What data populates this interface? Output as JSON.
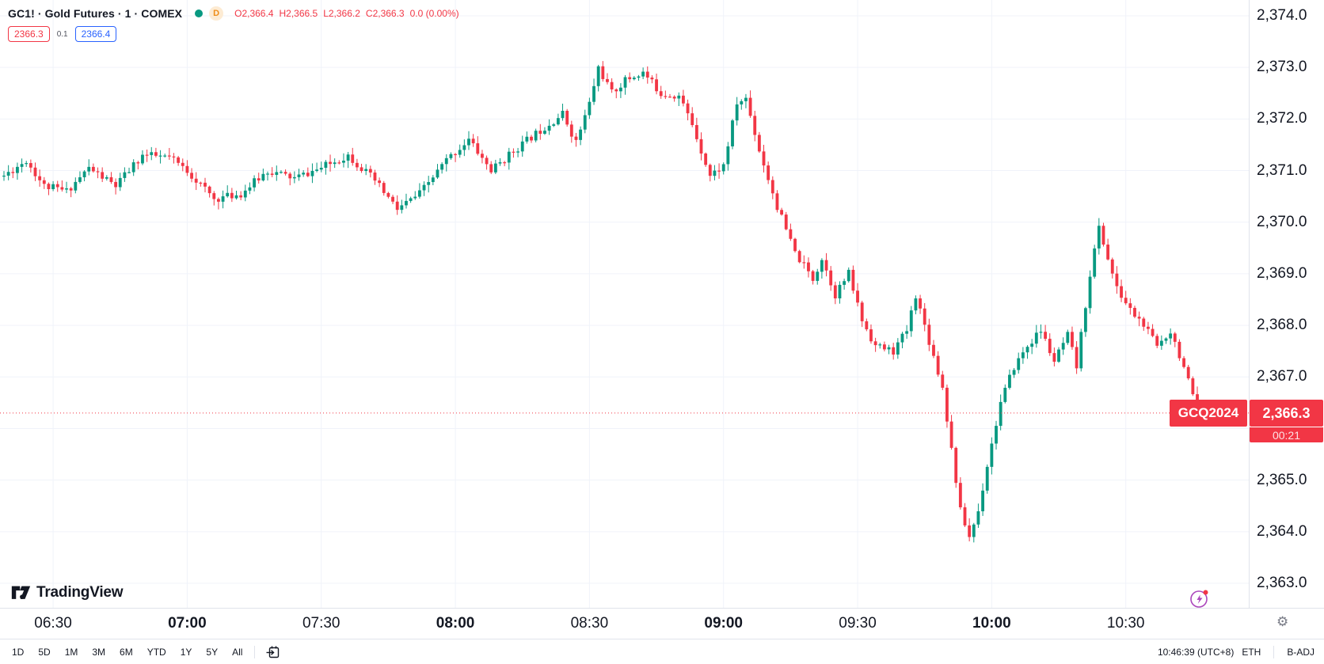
{
  "header": {
    "symbol_title": "GC1! · Gold Futures · 1 · COMEX",
    "market_status": "open",
    "interval_badge": "D",
    "ohlc": {
      "open_label": "O",
      "open": "2,366.4",
      "high_label": "H",
      "high": "2,366.5",
      "low_label": "L",
      "low": "2,366.2",
      "close_label": "C",
      "close": "2,366.3",
      "change": "0.0 (0.00%)"
    },
    "bid": "2366.3",
    "spread": "0.1",
    "ask": "2366.4"
  },
  "branding": {
    "logo_text": "TradingView"
  },
  "chart_data": {
    "type": "candlestick",
    "symbol": "GC1!",
    "contract": "GCQ2024",
    "interval_minutes": 1,
    "session_start": "06:19",
    "session_end": "10:46",
    "last_price": 2366.3,
    "price_axis": {
      "min": 2363.0,
      "max": 2374.0,
      "tick": 1.0,
      "labels": [
        {
          "value": 2374.0,
          "label": "2,374.0"
        },
        {
          "value": 2373.0,
          "label": "2,373.0"
        },
        {
          "value": 2372.0,
          "label": "2,372.0"
        },
        {
          "value": 2371.0,
          "label": "2,371.0"
        },
        {
          "value": 2370.0,
          "label": "2,370.0"
        },
        {
          "value": 2369.0,
          "label": "2,369.0"
        },
        {
          "value": 2368.0,
          "label": "2,368.0"
        },
        {
          "value": 2367.0,
          "label": "2,367.0"
        },
        {
          "value": 2365.0,
          "label": "2,365.0"
        },
        {
          "value": 2364.0,
          "label": "2,364.0"
        },
        {
          "value": 2363.0,
          "label": "2,363.0"
        }
      ]
    },
    "time_axis": {
      "labels": [
        {
          "t": "06:30",
          "bold": false
        },
        {
          "t": "07:00",
          "bold": true
        },
        {
          "t": "07:30",
          "bold": false
        },
        {
          "t": "08:00",
          "bold": true
        },
        {
          "t": "08:30",
          "bold": false
        },
        {
          "t": "09:00",
          "bold": true
        },
        {
          "t": "09:30",
          "bold": false
        },
        {
          "t": "10:00",
          "bold": true
        },
        {
          "t": "10:30",
          "bold": false
        }
      ]
    },
    "price_path": [
      [
        "06:19",
        2370.9
      ],
      [
        "06:24",
        2371.2
      ],
      [
        "06:28",
        2370.7
      ],
      [
        "06:33",
        2370.6
      ],
      [
        "06:38",
        2371.05
      ],
      [
        "06:44",
        2370.7
      ],
      [
        "06:50",
        2371.3
      ],
      [
        "06:56",
        2371.25
      ],
      [
        "07:00",
        2371.0
      ],
      [
        "07:06",
        2370.45
      ],
      [
        "07:12",
        2370.55
      ],
      [
        "07:18",
        2371.0
      ],
      [
        "07:24",
        2370.85
      ],
      [
        "07:30",
        2371.05
      ],
      [
        "07:36",
        2371.3
      ],
      [
        "07:42",
        2370.8
      ],
      [
        "07:47",
        2370.25
      ],
      [
        "07:52",
        2370.55
      ],
      [
        "07:58",
        2371.2
      ],
      [
        "08:03",
        2371.6
      ],
      [
        "08:08",
        2371.0
      ],
      [
        "08:14",
        2371.45
      ],
      [
        "08:20",
        2371.85
      ],
      [
        "08:24",
        2372.1
      ],
      [
        "08:27",
        2371.55
      ],
      [
        "08:30",
        2372.3
      ],
      [
        "08:32",
        2373.0
      ],
      [
        "08:35",
        2372.5
      ],
      [
        "08:38",
        2372.75
      ],
      [
        "08:42",
        2372.9
      ],
      [
        "08:46",
        2372.5
      ],
      [
        "08:50",
        2372.45
      ],
      [
        "08:53",
        2371.9
      ],
      [
        "08:57",
        2370.9
      ],
      [
        "09:00",
        2371.1
      ],
      [
        "09:03",
        2372.3
      ],
      [
        "09:05",
        2372.4
      ],
      [
        "09:08",
        2371.4
      ],
      [
        "09:12",
        2370.3
      ],
      [
        "09:16",
        2369.4
      ],
      [
        "09:20",
        2368.9
      ],
      [
        "09:22",
        2369.3
      ],
      [
        "09:25",
        2368.6
      ],
      [
        "09:28",
        2369.0
      ],
      [
        "09:31",
        2368.1
      ],
      [
        "09:34",
        2367.6
      ],
      [
        "09:38",
        2367.5
      ],
      [
        "09:41",
        2367.9
      ],
      [
        "09:43",
        2368.6
      ],
      [
        "09:46",
        2367.7
      ],
      [
        "09:49",
        2366.8
      ],
      [
        "09:51",
        2365.6
      ],
      [
        "09:53",
        2364.4
      ],
      [
        "09:55",
        2363.9
      ],
      [
        "09:57",
        2364.4
      ],
      [
        "09:59",
        2365.3
      ],
      [
        "10:02",
        2366.5
      ],
      [
        "10:05",
        2367.2
      ],
      [
        "10:08",
        2367.6
      ],
      [
        "10:11",
        2367.9
      ],
      [
        "10:14",
        2367.3
      ],
      [
        "10:17",
        2367.8
      ],
      [
        "10:19",
        2367.2
      ],
      [
        "10:22",
        2369.0
      ],
      [
        "10:24",
        2369.9
      ],
      [
        "10:26",
        2369.3
      ],
      [
        "10:28",
        2368.7
      ],
      [
        "10:31",
        2368.3
      ],
      [
        "10:34",
        2368.0
      ],
      [
        "10:37",
        2367.6
      ],
      [
        "10:40",
        2367.9
      ],
      [
        "10:43",
        2367.2
      ],
      [
        "10:45",
        2366.6
      ],
      [
        "10:46",
        2366.3
      ]
    ],
    "price_label": {
      "series": "GCQ2024",
      "price": "2,366.3",
      "countdown": "00:21"
    },
    "colors": {
      "up": "#089981",
      "down": "#f23645",
      "last_price_line": "#f23645",
      "grid": "#f0f3fa"
    },
    "grid": true,
    "legend_position": "top-left"
  },
  "footer": {
    "ranges": [
      "1D",
      "5D",
      "1M",
      "3M",
      "6M",
      "YTD",
      "1Y",
      "5Y",
      "All"
    ],
    "clock": "10:46:39 (UTC+8)",
    "session": "ETH",
    "adjustment": "B-ADJ"
  },
  "icons": {
    "market_status_dot": "green-dot",
    "interval_badge": "amber-circle-D",
    "goto_date": "calendar-with-arrow",
    "timezone_gear": "gear",
    "instant_trade": "lightning-in-circle-with-red-dot"
  },
  "colors": {
    "text": "#131722",
    "muted": "#787b86",
    "accent_red": "#f23645",
    "ask_blue": "#2962ff",
    "up_green": "#089981",
    "border": "#e0e3eb",
    "badge_bg": "#fdebd3",
    "badge_text": "#ef8e1a"
  }
}
